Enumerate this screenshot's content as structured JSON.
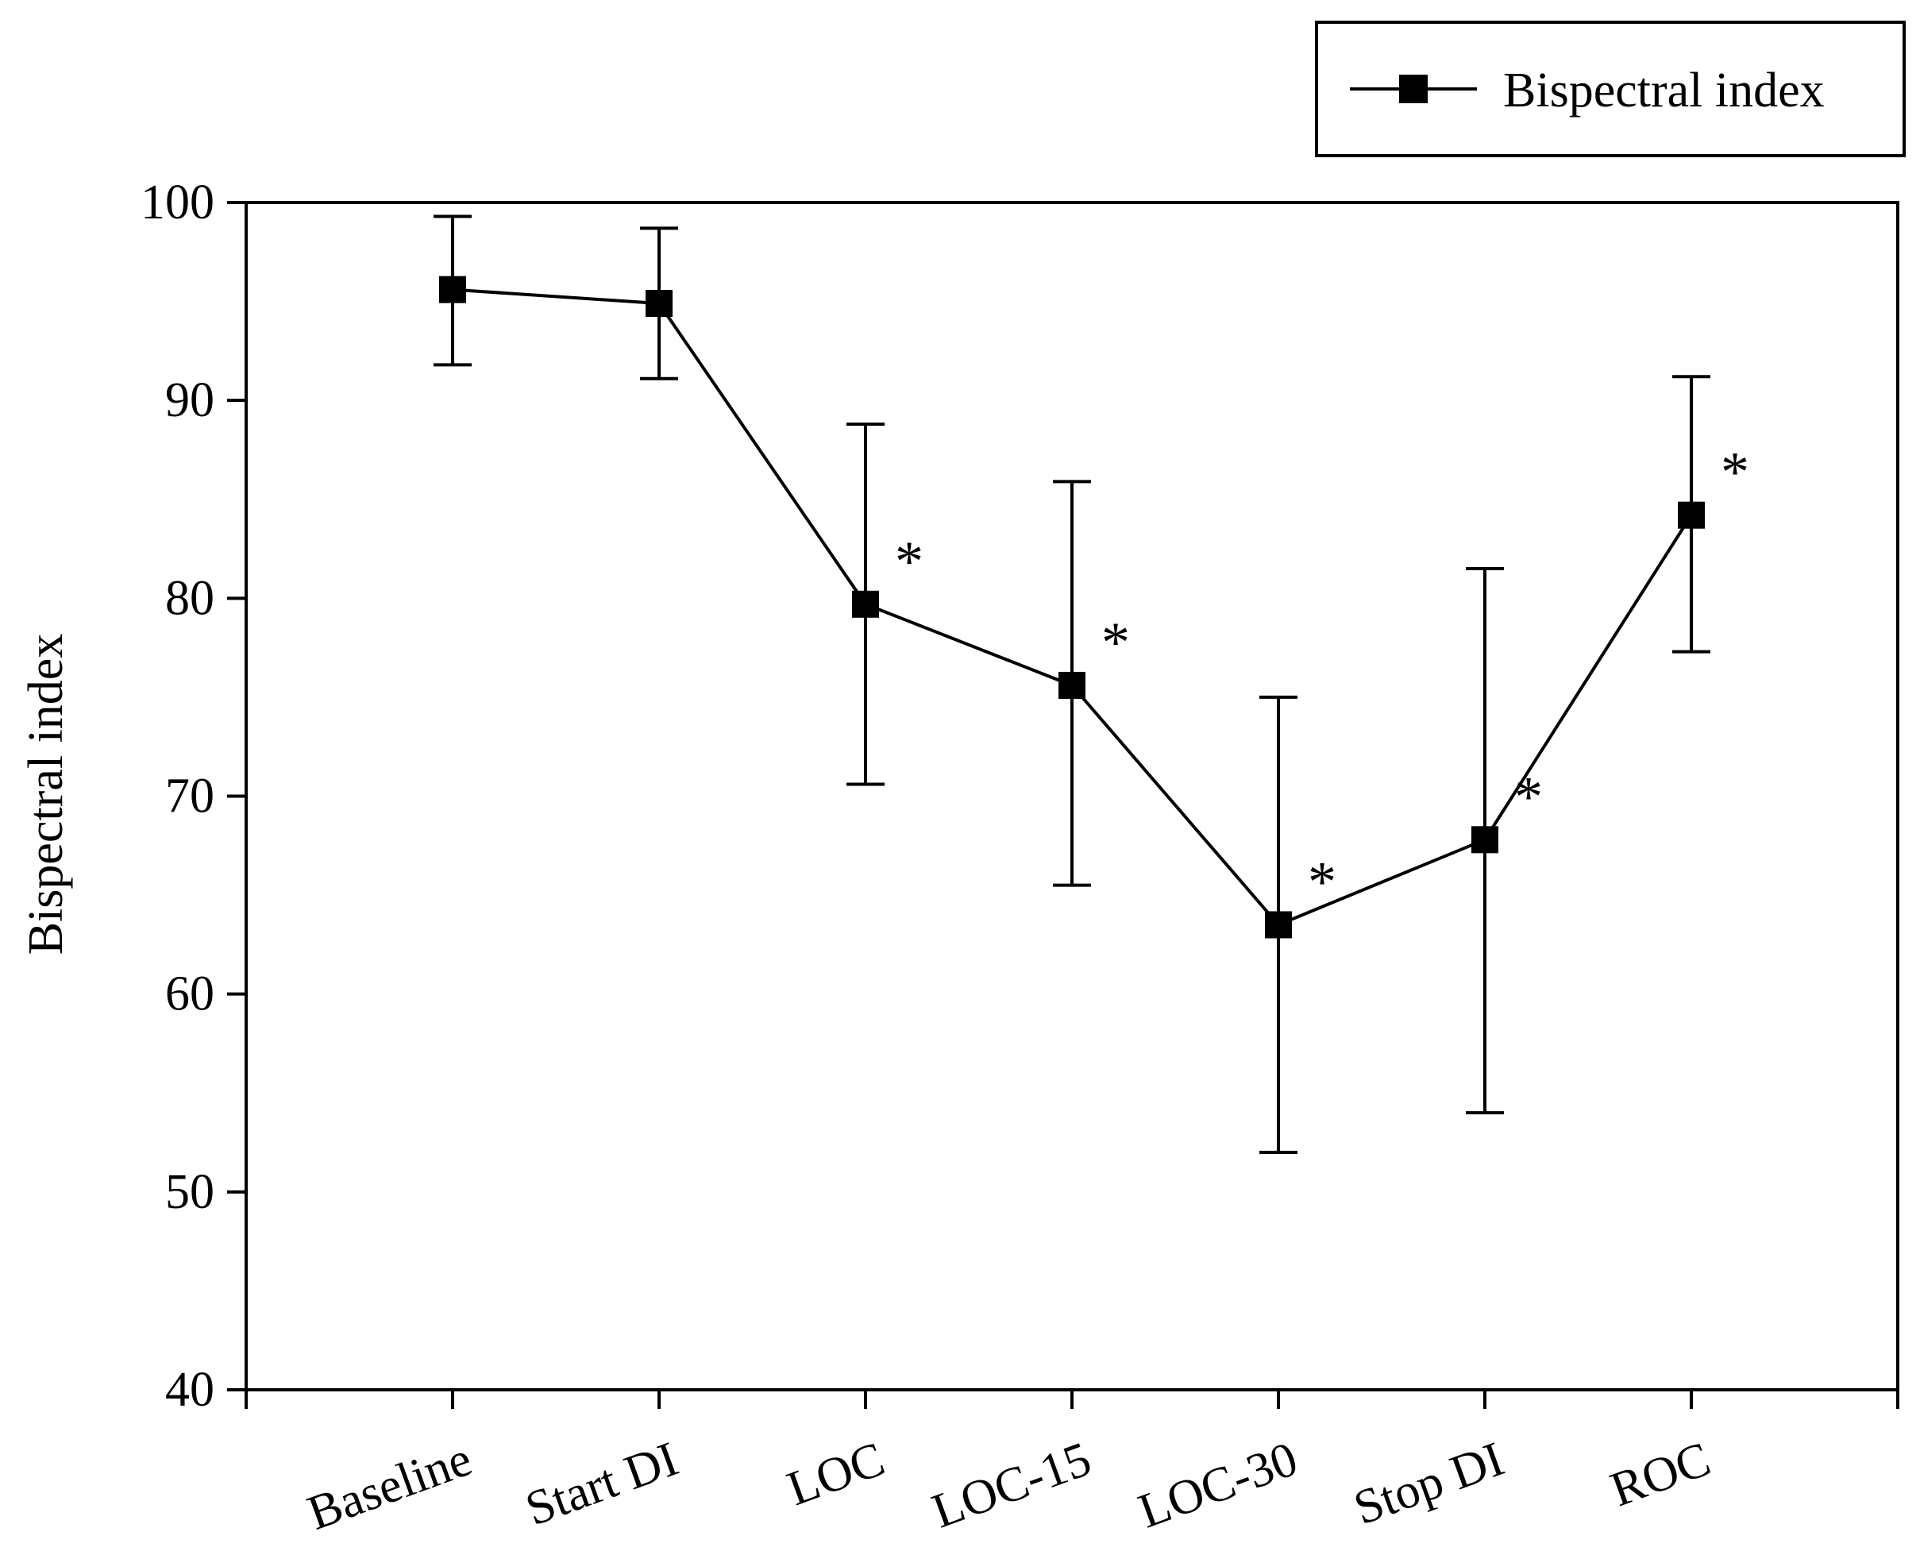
{
  "chart_data": {
    "type": "line",
    "title": "",
    "xlabel": "",
    "ylabel": "Bispectral index",
    "ylim": [
      40,
      100
    ],
    "yticks": [
      40,
      50,
      60,
      70,
      80,
      90,
      100
    ],
    "ytick_labels": [
      "40",
      "50",
      "60",
      "70",
      "80",
      "90",
      "100"
    ],
    "categories": [
      "Baseline",
      "Start DI",
      "LOC",
      "LOC-15",
      "LOC-30",
      "Stop DI",
      "ROC"
    ],
    "grid": false,
    "legend": {
      "position": "top-right",
      "entries": [
        "Bispectral index"
      ]
    },
    "series": [
      {
        "name": "Bispectral index",
        "color": "#000000",
        "marker": "square",
        "values": [
          95.6,
          94.9,
          79.7,
          75.6,
          63.5,
          67.8,
          84.2
        ],
        "err_low": [
          91.8,
          91.1,
          70.6,
          65.5,
          52.0,
          54.0,
          77.3
        ],
        "err_high": [
          99.3,
          98.7,
          88.8,
          85.9,
          75.0,
          81.5,
          91.2
        ],
        "significant": [
          false,
          false,
          true,
          true,
          true,
          true,
          true
        ]
      }
    ],
    "annotation_symbol": "*"
  }
}
